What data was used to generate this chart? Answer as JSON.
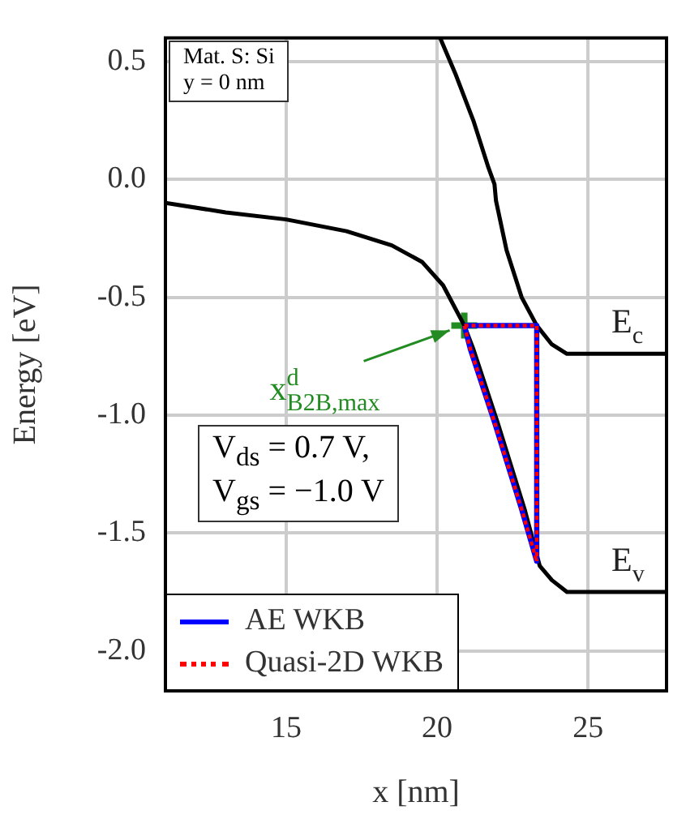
{
  "chart_data": {
    "type": "line",
    "xlabel": "x [nm]",
    "ylabel": "Energy [eV]",
    "xlim": [
      11,
      27.6
    ],
    "ylim": [
      -2.17,
      0.6
    ],
    "xticks": [
      15,
      20,
      25
    ],
    "yticks": [
      0.5,
      {
        "value": 0,
        "label": "0.0"
      },
      -0.5,
      {
        "value": -1,
        "label": "-1.0"
      },
      -1.5,
      {
        "value": -2,
        "label": "-2.0"
      }
    ],
    "grid": true,
    "legend": "bottom left",
    "marker": "none",
    "series": [
      {
        "color": "#000000",
        "x": [
          20.1,
          20.6,
          21.2,
          21.7,
          21.9,
          21.95,
          22.3,
          22.8,
          23.3,
          23.8,
          24.3,
          27.6
        ],
        "values": [
          0.6,
          0.45,
          0.25,
          0.05,
          -0.02,
          -0.09,
          -0.3,
          -0.5,
          -0.62,
          -0.7,
          -0.74,
          -0.74
        ]
      },
      {
        "color": "#000000",
        "x": [
          11,
          13,
          15,
          17,
          18.5,
          19.5,
          20.2,
          20.9,
          21.2,
          22.0,
          22.9,
          23.4,
          23.8,
          24.3,
          27.6
        ],
        "values": [
          -0.1,
          -0.14,
          -0.17,
          -0.22,
          -0.28,
          -0.35,
          -0.45,
          -0.62,
          -0.72,
          -1.03,
          -1.4,
          -1.64,
          -1.7,
          -1.75,
          -1.75
        ]
      },
      {
        "name": "AE WKB",
        "color": "#0000ff",
        "line_style": "solid",
        "x": [
          20.9,
          23.3,
          23.3,
          null,
          20.9,
          21.1,
          21.9,
          22.8,
          23.3
        ],
        "values": [
          -0.62,
          -0.62,
          -1.62,
          null,
          -0.62,
          -0.72,
          -1.03,
          -1.4,
          -1.62
        ]
      },
      {
        "name": "Quasi-2D WKB",
        "color": "#ff0000",
        "line_style": "dotted",
        "x": [
          20.9,
          23.3,
          23.3,
          null,
          20.9,
          21.1,
          21.9,
          22.8,
          23.3
        ],
        "values": [
          -0.62,
          -0.62,
          -1.62,
          null,
          -0.62,
          -0.72,
          -1.03,
          -1.4,
          -1.62
        ]
      },
      {
        "type": "scatter",
        "marker": "cross",
        "color": "#228b22",
        "x": [
          20.9
        ],
        "values": [
          -0.62
        ]
      }
    ],
    "annotations": [
      "Mat. S: Si",
      "y = 0 nm",
      "V$_{ds}$ = 0.7 V,",
      "V$_{gs}$ = −1.0 V",
      {
        "text": "x$^{d}$$_{B2B,max}$",
        "x": 20.9,
        "y": -0.62
      },
      "E$_{c}$",
      "E$_{v}$"
    ]
  }
}
